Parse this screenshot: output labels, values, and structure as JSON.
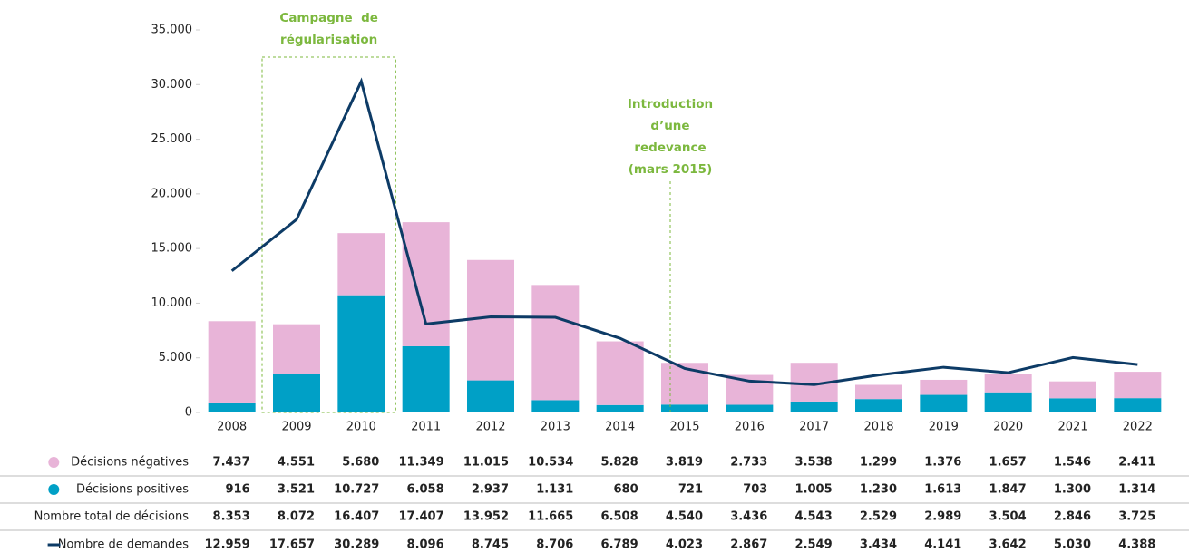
{
  "chart_data": {
    "type": "bar",
    "categories": [
      "2008",
      "2009",
      "2010",
      "2011",
      "2012",
      "2013",
      "2014",
      "2015",
      "2016",
      "2017",
      "2018",
      "2019",
      "2020",
      "2021",
      "2022"
    ],
    "ylim": [
      0,
      35000
    ],
    "yticks": [
      0,
      {
        "value": 5000,
        "label": "5.000"
      },
      {
        "value": 10000,
        "label": "10.000"
      },
      {
        "value": 15000,
        "label": "15.000"
      },
      {
        "value": 20000,
        "label": "20.000"
      },
      {
        "value": 25000,
        "label": "25.000"
      },
      {
        "value": 30000,
        "label": "30.000"
      },
      {
        "value": 35000,
        "label": "35.000"
      }
    ],
    "series": [
      {
        "name": "Décisions négatives",
        "color": "#e8b4d8",
        "stack": true,
        "values": [
          7437,
          4551,
          5680,
          11349,
          11015,
          10534,
          5828,
          3819,
          2733,
          3538,
          1299,
          1376,
          1657,
          1546,
          2411
        ],
        "value_labels": [
          "7.437",
          "4.551",
          "5.680",
          "11.349",
          "11.015",
          "10.534",
          "5.828",
          "3.819",
          "2.733",
          "3.538",
          "1.299",
          "1.376",
          "1.657",
          "1.546",
          "2.411"
        ]
      },
      {
        "name": "Décisions positives",
        "color": "#00a0c6",
        "stack": true,
        "values": [
          916,
          3521,
          10727,
          6058,
          2937,
          1131,
          680,
          721,
          703,
          1005,
          1230,
          1613,
          1847,
          1300,
          1314
        ],
        "value_labels": [
          "916",
          "3.521",
          "10.727",
          "6.058",
          "2.937",
          "1.131",
          "680",
          "721",
          "703",
          "1.005",
          "1.230",
          "1.613",
          "1.847",
          "1.300",
          "1.314"
        ]
      },
      {
        "name": "Nombre total de décisions",
        "values": [
          8353,
          8072,
          16407,
          17407,
          13952,
          11665,
          6508,
          4540,
          3436,
          4543,
          2529,
          2989,
          3504,
          2846,
          3725
        ],
        "value_labels": [
          "8.353",
          "8.072",
          "16.407",
          "17.407",
          "13.952",
          "11.665",
          "6.508",
          "4.540",
          "3.436",
          "4.543",
          "2.529",
          "2.989",
          "3.504",
          "2.846",
          "3.725"
        ]
      },
      {
        "name": "Nombre de demandes",
        "color": "#0d3b66",
        "kind": "line",
        "values": [
          12959,
          17657,
          30289,
          8096,
          8745,
          8706,
          6789,
          4023,
          2867,
          2549,
          3434,
          4141,
          3642,
          5030,
          4388
        ],
        "value_labels": [
          "12.959",
          "17.657",
          "30.289",
          "8.096",
          "8.745",
          "8.706",
          "6.789",
          "4.023",
          "2.867",
          "2.549",
          "3.434",
          "4.141",
          "3.642",
          "5.030",
          "4.388"
        ]
      }
    ],
    "annotations": [
      {
        "lines": [
          "Campagne  de",
          "régularisation"
        ],
        "color": "#7cb83e"
      },
      {
        "lines": [
          "Introduction",
          "d’une",
          "redevance",
          "(mars 2015)"
        ],
        "color": "#7cb83e"
      }
    ]
  }
}
